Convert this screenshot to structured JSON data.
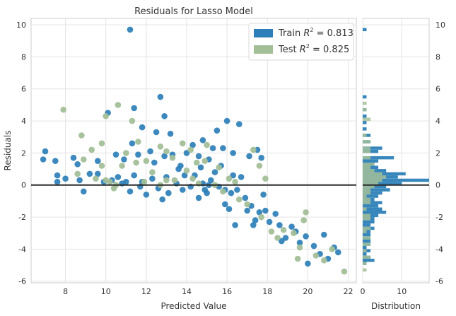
{
  "chart_data": [
    {
      "type": "scatter",
      "title": "Residuals for Lasso Model",
      "xlabel": "Predicted Value",
      "ylabel": "Residuals",
      "xlim": [
        6.3,
        22.4
      ],
      "ylim": [
        -6.1,
        10.4
      ],
      "xticks": [
        8,
        10,
        12,
        14,
        16,
        18,
        20,
        22
      ],
      "yticks": [
        -6,
        -4,
        -2,
        0,
        2,
        4,
        6,
        8,
        10
      ],
      "grid": true,
      "legend_position": "top-right",
      "zero_line": 0,
      "series": [
        {
          "name": "Train R² = 0.813",
          "legend_prefix": "Train ",
          "legend_math": "R",
          "legend_sup": "2",
          "legend_suffix": " = 0.813",
          "color": "#1f77b4",
          "points": [
            [
              11.2,
              9.7
            ],
            [
              12.7,
              5.5
            ],
            [
              10.1,
              4.5
            ],
            [
              11.4,
              4.8
            ],
            [
              12.9,
              4.3
            ],
            [
              11.8,
              3.6
            ],
            [
              13.2,
              3.2
            ],
            [
              12.5,
              3.3
            ],
            [
              15.5,
              3.4
            ],
            [
              16.0,
              4.0
            ],
            [
              16.6,
              3.8
            ],
            [
              14.8,
              2.8
            ],
            [
              14.3,
              2.5
            ],
            [
              14.0,
              2.0
            ],
            [
              14.6,
              1.8
            ],
            [
              15.1,
              1.6
            ],
            [
              15.3,
              2.3
            ],
            [
              15.8,
              2.3
            ],
            [
              16.3,
              2.0
            ],
            [
              17.1,
              1.8
            ],
            [
              17.7,
              1.7
            ],
            [
              17.5,
              2.2
            ],
            [
              7.0,
              2.1
            ],
            [
              6.9,
              1.6
            ],
            [
              7.5,
              1.5
            ],
            [
              8.4,
              1.7
            ],
            [
              8.6,
              1.3
            ],
            [
              7.6,
              0.6
            ],
            [
              7.6,
              0.2
            ],
            [
              8.0,
              0.4
            ],
            [
              8.7,
              0.3
            ],
            [
              8.9,
              -0.4
            ],
            [
              9.2,
              0.7
            ],
            [
              9.6,
              1.5
            ],
            [
              9.6,
              0.7
            ],
            [
              10.3,
              0.3
            ],
            [
              10.5,
              1.9
            ],
            [
              10.9,
              1.6
            ],
            [
              11.3,
              2.6
            ],
            [
              11.6,
              1.9
            ],
            [
              12.2,
              2.1
            ],
            [
              12.4,
              1.4
            ],
            [
              12.9,
              1.8
            ],
            [
              13.3,
              1.9
            ],
            [
              13.7,
              1.2
            ],
            [
              11.4,
              0.6
            ],
            [
              11.8,
              0.2
            ],
            [
              12.3,
              0.4
            ],
            [
              12.6,
              -0.2
            ],
            [
              13.0,
              0.5
            ],
            [
              13.5,
              0.1
            ],
            [
              13.9,
              0.6
            ],
            [
              14.2,
              -0.1
            ],
            [
              14.4,
              0.6
            ],
            [
              14.8,
              0.1
            ],
            [
              15.0,
              -0.5
            ],
            [
              15.2,
              0.3
            ],
            [
              14.6,
              -0.8
            ],
            [
              15.1,
              0.0
            ],
            [
              15.4,
              0.8
            ],
            [
              15.6,
              -0.1
            ],
            [
              15.9,
              -1.2
            ],
            [
              16.1,
              -1.5
            ],
            [
              16.2,
              -0.5
            ],
            [
              16.3,
              0.6
            ],
            [
              16.5,
              -0.3
            ],
            [
              16.7,
              0.5
            ],
            [
              16.9,
              -0.8
            ],
            [
              17.0,
              -1.6
            ],
            [
              17.2,
              -1.3
            ],
            [
              17.4,
              -2.2
            ],
            [
              17.6,
              -1.7
            ],
            [
              17.8,
              -0.6
            ],
            [
              17.9,
              -1.6
            ],
            [
              18.1,
              -2.3
            ],
            [
              18.4,
              -1.8
            ],
            [
              18.6,
              -2.5
            ],
            [
              18.9,
              -3.3
            ],
            [
              19.2,
              -2.6
            ],
            [
              19.4,
              -2.9
            ],
            [
              19.6,
              -3.6
            ],
            [
              19.9,
              -3.2
            ],
            [
              20.0,
              -4.9
            ],
            [
              20.3,
              -3.8
            ],
            [
              20.6,
              -4.3
            ],
            [
              20.8,
              -3.1
            ],
            [
              21.0,
              -4.6
            ],
            [
              21.3,
              -3.9
            ],
            [
              21.5,
              -4.2
            ],
            [
              11.0,
              0.2
            ],
            [
              11.2,
              -0.4
            ],
            [
              10.8,
              0.1
            ],
            [
              13.8,
              -0.3
            ],
            [
              14.9,
              -0.3
            ],
            [
              15.7,
              1.2
            ],
            [
              13.1,
              -0.5
            ],
            [
              12.0,
              -0.6
            ],
            [
              16.4,
              -2.5
            ],
            [
              17.3,
              -2.5
            ],
            [
              18.7,
              -3.5
            ],
            [
              9.9,
              0.2
            ],
            [
              10.6,
              0.5
            ],
            [
              14.7,
              1.1
            ],
            [
              15.9,
              -0.3
            ],
            [
              12.8,
              -0.9
            ],
            [
              13.6,
              1.0
            ],
            [
              11.7,
              -0.1
            ]
          ]
        },
        {
          "name": "Test R² = 0.825",
          "legend_prefix": "Test ",
          "legend_math": "R",
          "legend_sup": "2",
          "legend_suffix": " = 0.825",
          "color": "#9fbc94",
          "points": [
            [
              7.9,
              4.7
            ],
            [
              10.6,
              5.0
            ],
            [
              11.3,
              4.0
            ],
            [
              10.0,
              4.3
            ],
            [
              8.8,
              3.1
            ],
            [
              9.3,
              2.2
            ],
            [
              9.8,
              2.6
            ],
            [
              11.0,
              2.0
            ],
            [
              8.9,
              1.6
            ],
            [
              8.6,
              0.7
            ],
            [
              9.5,
              0.4
            ],
            [
              9.8,
              1.2
            ],
            [
              10.0,
              0.3
            ],
            [
              10.2,
              0.2
            ],
            [
              10.5,
              0.0
            ],
            [
              10.8,
              1.2
            ],
            [
              11.5,
              1.4
            ],
            [
              11.6,
              2.7
            ],
            [
              12.0,
              1.5
            ],
            [
              12.7,
              2.4
            ],
            [
              13.0,
              2.1
            ],
            [
              13.3,
              1.7
            ],
            [
              13.8,
              2.6
            ],
            [
              14.2,
              2.2
            ],
            [
              14.5,
              1.4
            ],
            [
              15.0,
              2.5
            ],
            [
              15.6,
              1.1
            ],
            [
              16.1,
              0.4
            ],
            [
              16.4,
              0.2
            ],
            [
              17.3,
              2.2
            ],
            [
              17.6,
              1.2
            ],
            [
              17.9,
              0.4
            ],
            [
              12.3,
              0.8
            ],
            [
              12.7,
              0.0
            ],
            [
              13.0,
              0.3
            ],
            [
              13.4,
              0.3
            ],
            [
              14.0,
              0.9
            ],
            [
              14.3,
              0.4
            ],
            [
              14.9,
              1.5
            ],
            [
              15.4,
              0.0
            ],
            [
              15.8,
              -0.4
            ],
            [
              16.6,
              -0.9
            ],
            [
              17.0,
              -1.2
            ],
            [
              17.7,
              -2.0
            ],
            [
              18.2,
              -2.9
            ],
            [
              18.5,
              -3.3
            ],
            [
              18.8,
              -2.8
            ],
            [
              19.3,
              -3.0
            ],
            [
              19.6,
              -3.9
            ],
            [
              19.8,
              -2.2
            ],
            [
              19.9,
              -1.7
            ],
            [
              20.4,
              -4.4
            ],
            [
              20.8,
              -4.7
            ],
            [
              21.2,
              -4.0
            ],
            [
              21.8,
              -5.4
            ],
            [
              19.5,
              -4.6
            ],
            [
              11.9,
              0.2
            ],
            [
              10.4,
              -0.2
            ],
            [
              14.6,
              0.1
            ]
          ]
        }
      ]
    },
    {
      "type": "bar",
      "orientation": "horizontal",
      "xlabel": "Distribution",
      "xlim": [
        0,
        17
      ],
      "xticks": [
        0,
        10
      ],
      "yticks": [
        -6,
        -4,
        -2,
        0,
        2,
        4,
        6,
        8,
        10
      ],
      "ylim": [
        -6.1,
        10.4
      ],
      "bin_width": 0.2,
      "series": [
        {
          "name": "Train",
          "color": "#1f77b4",
          "bins": [
            [
              9.6,
              1
            ],
            [
              5.4,
              1
            ],
            [
              4.6,
              1
            ],
            [
              4.2,
              1
            ],
            [
              3.8,
              1
            ],
            [
              3.4,
              1
            ],
            [
              3.0,
              2
            ],
            [
              2.6,
              2
            ],
            [
              2.2,
              5
            ],
            [
              2.0,
              4
            ],
            [
              1.6,
              8
            ],
            [
              1.4,
              4
            ],
            [
              1.2,
              3
            ],
            [
              1.0,
              4
            ],
            [
              0.8,
              6
            ],
            [
              0.6,
              11
            ],
            [
              0.4,
              9
            ],
            [
              0.2,
              17
            ],
            [
              0.0,
              10
            ],
            [
              -0.2,
              6
            ],
            [
              -0.4,
              7
            ],
            [
              -0.6,
              5
            ],
            [
              -0.8,
              4
            ],
            [
              -1.0,
              3
            ],
            [
              -1.2,
              5
            ],
            [
              -1.4,
              4
            ],
            [
              -1.6,
              5
            ],
            [
              -1.8,
              6
            ],
            [
              -2.0,
              4
            ],
            [
              -2.2,
              3
            ],
            [
              -2.4,
              3
            ],
            [
              -2.6,
              2
            ],
            [
              -2.8,
              3
            ],
            [
              -3.0,
              2
            ],
            [
              -3.2,
              2
            ],
            [
              -3.4,
              2
            ],
            [
              -3.6,
              2
            ],
            [
              -3.8,
              2
            ],
            [
              -4.0,
              1
            ],
            [
              -4.2,
              2
            ],
            [
              -4.4,
              1
            ],
            [
              -4.6,
              2
            ],
            [
              -4.8,
              3
            ],
            [
              -5.0,
              1
            ]
          ]
        },
        {
          "name": "Test",
          "color": "#9fbc94",
          "bins": [
            [
              5.0,
              1
            ],
            [
              4.6,
              1
            ],
            [
              4.0,
              2
            ],
            [
              3.0,
              1
            ],
            [
              2.6,
              2
            ],
            [
              2.2,
              2
            ],
            [
              2.0,
              2
            ],
            [
              1.6,
              2
            ],
            [
              1.2,
              3
            ],
            [
              1.0,
              2
            ],
            [
              0.8,
              3
            ],
            [
              0.6,
              5
            ],
            [
              0.4,
              6
            ],
            [
              0.2,
              5
            ],
            [
              0.0,
              4
            ],
            [
              -0.2,
              3
            ],
            [
              -0.4,
              2
            ],
            [
              -0.6,
              2
            ],
            [
              -0.8,
              1
            ],
            [
              -1.0,
              2
            ],
            [
              -1.2,
              2
            ],
            [
              -1.6,
              1
            ],
            [
              -2.0,
              2
            ],
            [
              -2.2,
              2
            ],
            [
              -2.8,
              2
            ],
            [
              -3.0,
              1
            ],
            [
              -3.4,
              2
            ],
            [
              -3.8,
              2
            ],
            [
              -4.2,
              1
            ],
            [
              -4.6,
              2
            ],
            [
              -5.0,
              1
            ],
            [
              -5.4,
              1
            ]
          ]
        }
      ]
    }
  ]
}
